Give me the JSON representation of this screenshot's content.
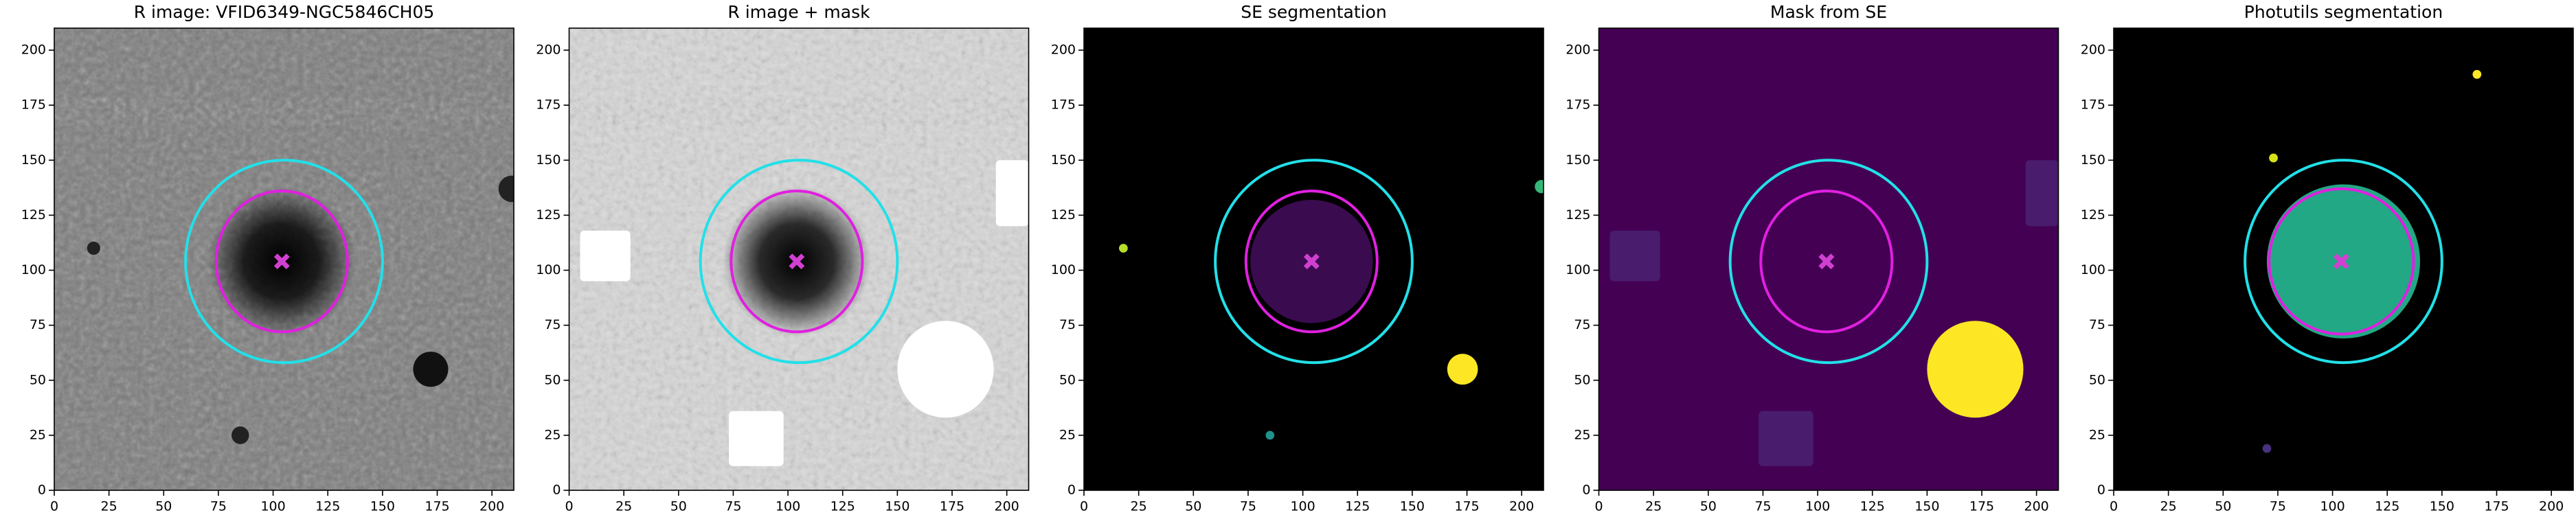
{
  "chart_data": [
    {
      "type": "image",
      "title": "R image: VFID6349-NGC5846CH05",
      "xlim": [
        0,
        210
      ],
      "ylim": [
        0,
        210
      ],
      "xticks": [
        0,
        25,
        50,
        75,
        100,
        125,
        150,
        175,
        200
      ],
      "yticks": [
        0,
        25,
        50,
        75,
        100,
        125,
        150,
        175,
        200
      ],
      "background": "#7a7a7a",
      "texture": true,
      "patches": [
        {
          "shape": "circle",
          "x": 104,
          "y": 104,
          "r": 34,
          "color": "#000000"
        },
        {
          "shape": "circle",
          "x": 172,
          "y": 55,
          "r": 8,
          "color": "#111111"
        },
        {
          "shape": "circle",
          "x": 18,
          "y": 110,
          "r": 3,
          "color": "#222222"
        },
        {
          "shape": "circle",
          "x": 85,
          "y": 25,
          "r": 4,
          "color": "#222222"
        },
        {
          "shape": "circle",
          "x": 209,
          "y": 137,
          "r": 6,
          "color": "#222222"
        }
      ],
      "ellipses": [
        {
          "cx": 105,
          "cy": 104,
          "rx": 45,
          "ry": 46,
          "color": "#22e0e8"
        },
        {
          "cx": 104,
          "cy": 104,
          "rx": 30,
          "ry": 32,
          "color": "#e020e0"
        }
      ],
      "markers": [
        {
          "x": 104,
          "y": 104,
          "color": "#d040d0"
        }
      ]
    },
    {
      "type": "image",
      "title": "R image + mask",
      "xlim": [
        0,
        210
      ],
      "ylim": [
        0,
        210
      ],
      "xticks": [
        0,
        25,
        50,
        75,
        100,
        125,
        150,
        175,
        200
      ],
      "yticks": [
        0,
        25,
        50,
        75,
        100,
        125,
        150,
        175,
        200
      ],
      "background": "#d8d8d8",
      "texture": true,
      "patches": [
        {
          "shape": "circle",
          "x": 104,
          "y": 104,
          "r": 34,
          "color": "#000000"
        },
        {
          "shape": "rect",
          "x": 5,
          "y": 95,
          "w": 23,
          "h": 23,
          "color": "#ffffff"
        },
        {
          "shape": "rect",
          "x": 195,
          "y": 120,
          "w": 15,
          "h": 30,
          "color": "#ffffff"
        },
        {
          "shape": "rect",
          "x": 73,
          "y": 11,
          "w": 25,
          "h": 25,
          "color": "#ffffff"
        },
        {
          "shape": "circle",
          "x": 172,
          "y": 55,
          "r": 22,
          "color": "#ffffff"
        }
      ],
      "ellipses": [
        {
          "cx": 105,
          "cy": 104,
          "rx": 45,
          "ry": 46,
          "color": "#22e0e8"
        },
        {
          "cx": 104,
          "cy": 104,
          "rx": 30,
          "ry": 32,
          "color": "#e020e0"
        }
      ],
      "markers": [
        {
          "x": 104,
          "y": 104,
          "color": "#d040d0"
        }
      ]
    },
    {
      "type": "image",
      "title": "SE segmentation",
      "xlim": [
        0,
        210
      ],
      "ylim": [
        0,
        210
      ],
      "xticks": [
        0,
        25,
        50,
        75,
        100,
        125,
        150,
        175,
        200
      ],
      "yticks": [
        0,
        25,
        50,
        75,
        100,
        125,
        150,
        175,
        200
      ],
      "background": "#000000",
      "texture": false,
      "patches": [
        {
          "shape": "circle",
          "x": 104,
          "y": 104,
          "r": 28,
          "color": "#3b0b4f"
        },
        {
          "shape": "circle",
          "x": 173,
          "y": 55,
          "r": 7,
          "color": "#fde725"
        },
        {
          "shape": "circle",
          "x": 85,
          "y": 25,
          "r": 2,
          "color": "#21918c"
        },
        {
          "shape": "circle",
          "x": 18,
          "y": 110,
          "r": 2,
          "color": "#b5de2b"
        },
        {
          "shape": "circle",
          "x": 209,
          "y": 138,
          "r": 3,
          "color": "#35b779"
        }
      ],
      "ellipses": [
        {
          "cx": 105,
          "cy": 104,
          "rx": 45,
          "ry": 46,
          "color": "#22e0e8"
        },
        {
          "cx": 104,
          "cy": 104,
          "rx": 30,
          "ry": 32,
          "color": "#e020e0"
        }
      ],
      "markers": [
        {
          "x": 104,
          "y": 104,
          "color": "#d040d0"
        }
      ]
    },
    {
      "type": "image",
      "title": "Mask from SE",
      "xlim": [
        0,
        210
      ],
      "ylim": [
        0,
        210
      ],
      "xticks": [
        0,
        25,
        50,
        75,
        100,
        125,
        150,
        175,
        200
      ],
      "yticks": [
        0,
        25,
        50,
        75,
        100,
        125,
        150,
        175,
        200
      ],
      "background": "#440154",
      "texture": false,
      "patches": [
        {
          "shape": "rect",
          "x": 5,
          "y": 95,
          "w": 23,
          "h": 23,
          "color": "#4a1c6e"
        },
        {
          "shape": "rect",
          "x": 195,
          "y": 120,
          "w": 15,
          "h": 30,
          "color": "#4a1c6e"
        },
        {
          "shape": "rect",
          "x": 73,
          "y": 11,
          "w": 25,
          "h": 25,
          "color": "#4a1c6e"
        },
        {
          "shape": "circle",
          "x": 172,
          "y": 55,
          "r": 22,
          "color": "#fde725"
        }
      ],
      "ellipses": [
        {
          "cx": 105,
          "cy": 104,
          "rx": 45,
          "ry": 46,
          "color": "#22e0e8"
        },
        {
          "cx": 104,
          "cy": 104,
          "rx": 30,
          "ry": 32,
          "color": "#e020e0"
        }
      ],
      "markers": [
        {
          "x": 104,
          "y": 104,
          "color": "#d040d0"
        }
      ]
    },
    {
      "type": "image",
      "title": "Photutils segmentation",
      "xlim": [
        0,
        210
      ],
      "ylim": [
        0,
        210
      ],
      "xticks": [
        0,
        25,
        50,
        75,
        100,
        125,
        150,
        175,
        200
      ],
      "yticks": [
        0,
        25,
        50,
        75,
        100,
        125,
        150,
        175,
        200
      ],
      "background": "#000000",
      "texture": false,
      "patches": [
        {
          "shape": "circle",
          "x": 105,
          "y": 104,
          "r": 35,
          "color": "#22a884"
        },
        {
          "shape": "circle",
          "x": 166,
          "y": 189,
          "r": 2,
          "color": "#fde725"
        },
        {
          "shape": "circle",
          "x": 73,
          "y": 151,
          "r": 2,
          "color": "#d8e219"
        },
        {
          "shape": "circle",
          "x": 70,
          "y": 19,
          "r": 2,
          "color": "#46327e"
        }
      ],
      "ellipses": [
        {
          "cx": 105,
          "cy": 104,
          "rx": 45,
          "ry": 46,
          "color": "#22e0e8"
        },
        {
          "cx": 104,
          "cy": 104,
          "rx": 33,
          "ry": 33,
          "color": "#e020e0"
        }
      ],
      "markers": [
        {
          "x": 104,
          "y": 104,
          "color": "#d040d0"
        }
      ]
    }
  ]
}
